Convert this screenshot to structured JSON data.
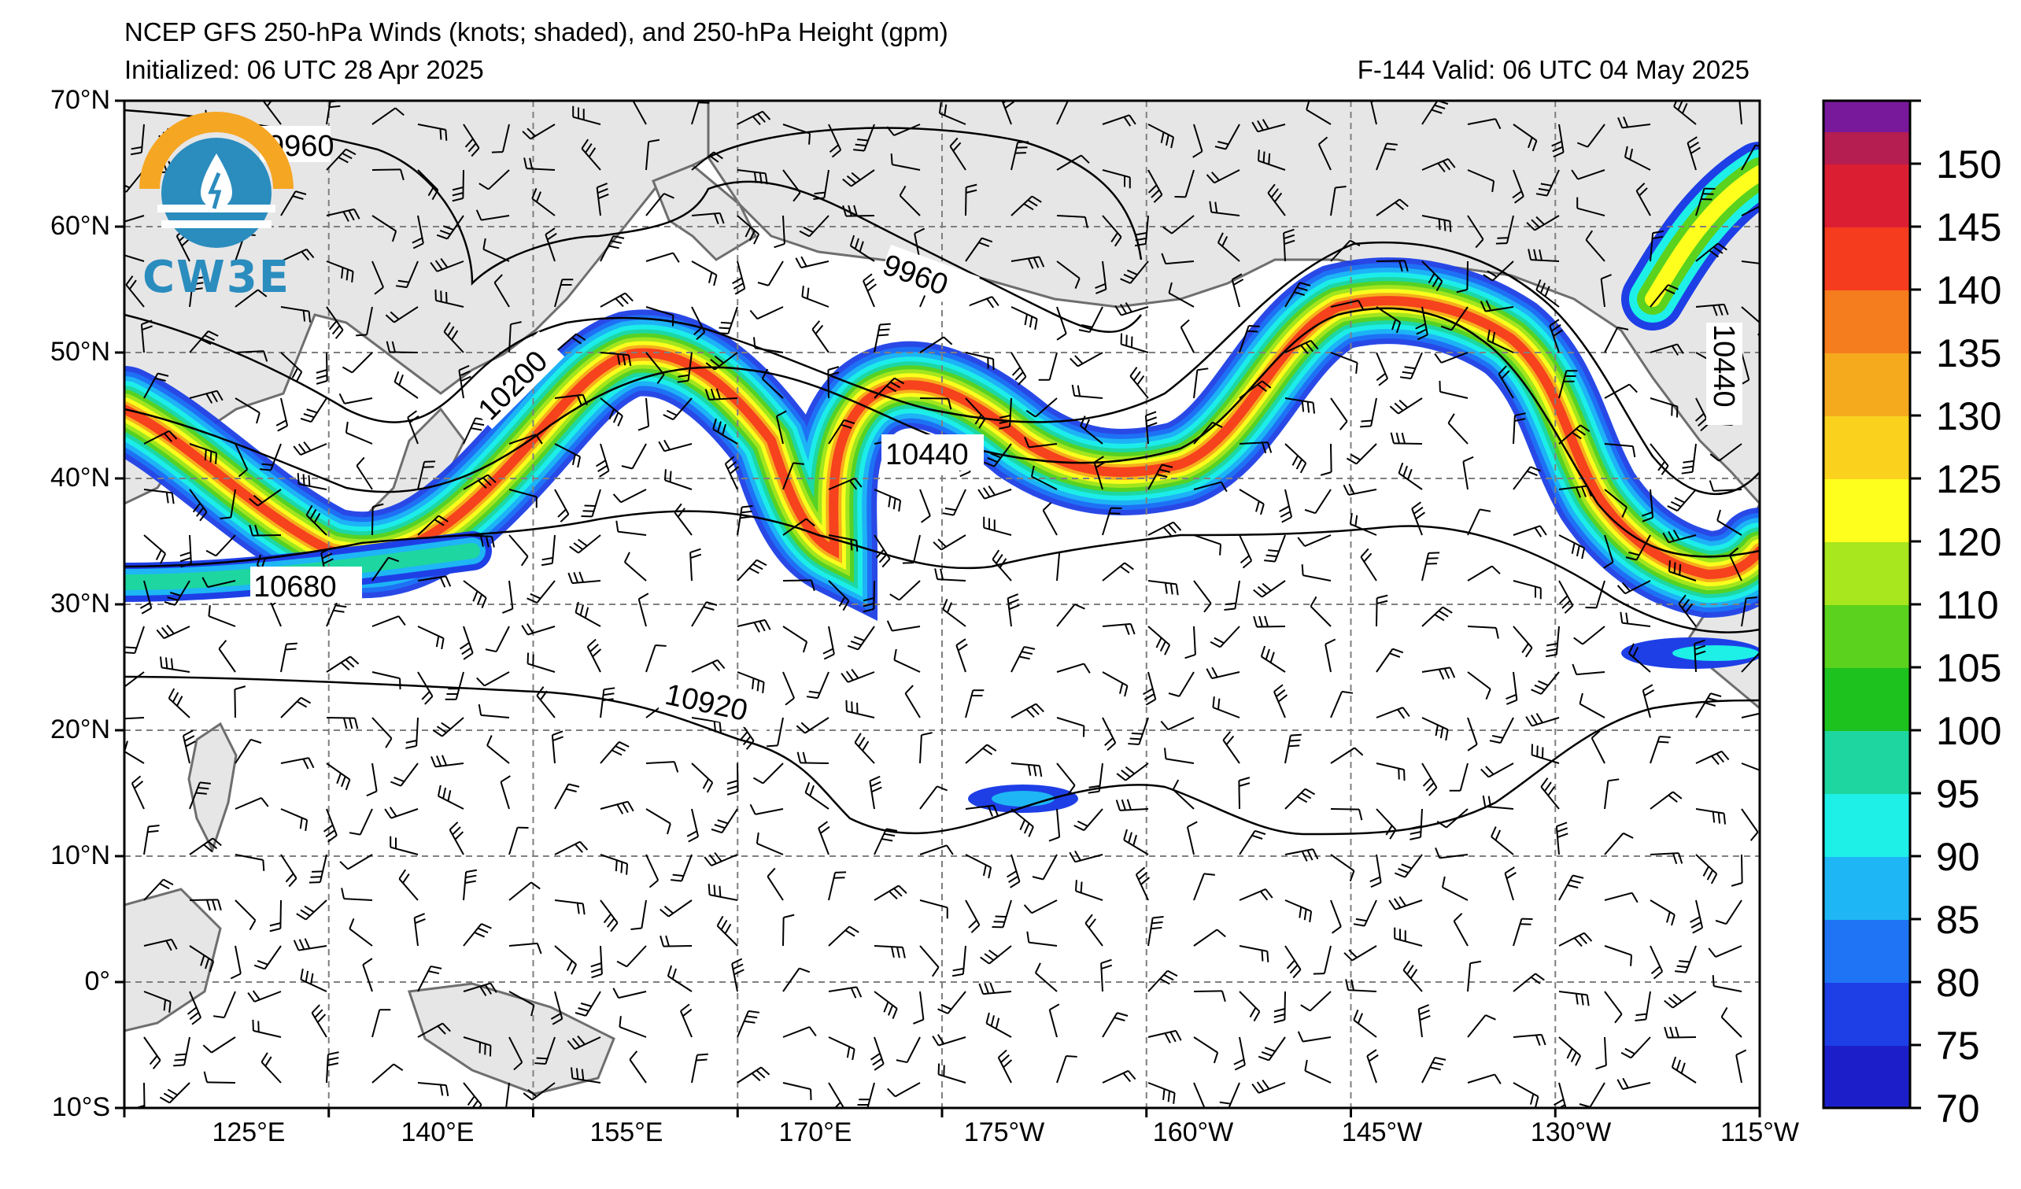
{
  "header": {
    "title": "NCEP GFS 250-hPa Winds (knots; shaded), and 250-hPa Height (gpm)",
    "initialized": "Initialized: 06 UTC 28 Apr 2025",
    "valid": "F-144  Valid: 06 UTC 04 May 2025"
  },
  "logo": {
    "text": "CW3E",
    "icon": "water-drop-sun-logo"
  },
  "axes": {
    "lat_labels": [
      "70°N",
      "60°N",
      "50°N",
      "40°N",
      "30°N",
      "20°N",
      "10°N",
      "0°",
      "10°S"
    ],
    "lon_labels": [
      "125°E",
      "140°E",
      "155°E",
      "170°E",
      "175°W",
      "160°W",
      "145°W",
      "130°W",
      "115°W"
    ]
  },
  "contours": {
    "labels": [
      "9960",
      "9960",
      "10200",
      "10440",
      "10440",
      "10680",
      "10920"
    ]
  },
  "colorbar": {
    "ticks": [
      "70",
      "75",
      "80",
      "85",
      "90",
      "95",
      "100",
      "105",
      "110",
      "120",
      "125",
      "130",
      "135",
      "140",
      "145",
      "150"
    ],
    "colors": [
      "#1c1fc9",
      "#1e3fe6",
      "#1e74f5",
      "#1eb6f5",
      "#1ef0e8",
      "#1ed6a0",
      "#1ec21e",
      "#5ad21e",
      "#a8e61e",
      "#ffff1e",
      "#fad21e",
      "#f5aa1e",
      "#f57d1e",
      "#f53c1e",
      "#dc1e32",
      "#b41e50",
      "#961e78",
      "#78199b"
    ]
  }
}
